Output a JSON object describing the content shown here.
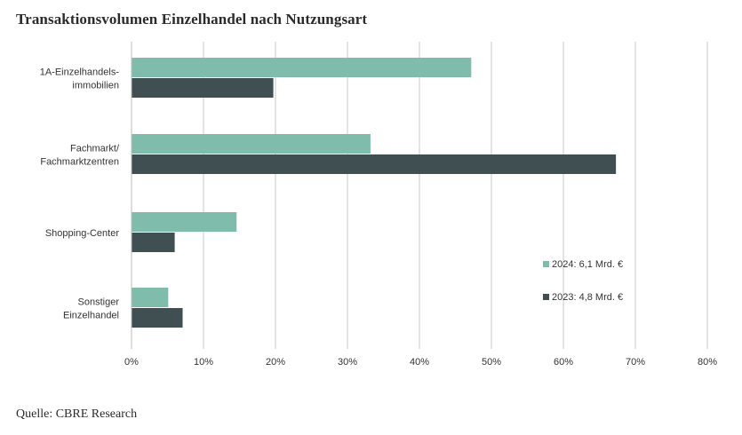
{
  "title": "Transaktionsvolumen Einzelhandel nach Nutzungsart",
  "source": "Quelle: CBRE Research",
  "chart_data": {
    "type": "bar",
    "orientation": "horizontal",
    "title": "Transaktionsvolumen Einzelhandel nach Nutzungsart",
    "categories": [
      [
        "1A-Einzelhandels-",
        "immobilien"
      ],
      [
        "Fachmarkt/",
        "Fachmarktzentren"
      ],
      [
        "Shopping-Center"
      ],
      [
        "Sonstiger",
        "Einzelhandel"
      ]
    ],
    "series": [
      {
        "name": "2024: 6,1 Mrd. €",
        "color": "#7fbcab",
        "values": [
          47.2,
          33.2,
          14.6,
          5.1
        ]
      },
      {
        "name": "2023: 4,8 Mrd. €",
        "color": "#3f4f52",
        "values": [
          19.7,
          67.3,
          6.0,
          7.1
        ]
      }
    ],
    "xlim": [
      0,
      80
    ],
    "xticks": [
      "0%",
      "10%",
      "20%",
      "30%",
      "40%",
      "50%",
      "60%",
      "70%",
      "80%"
    ],
    "grid": true,
    "legend_position": "right"
  }
}
